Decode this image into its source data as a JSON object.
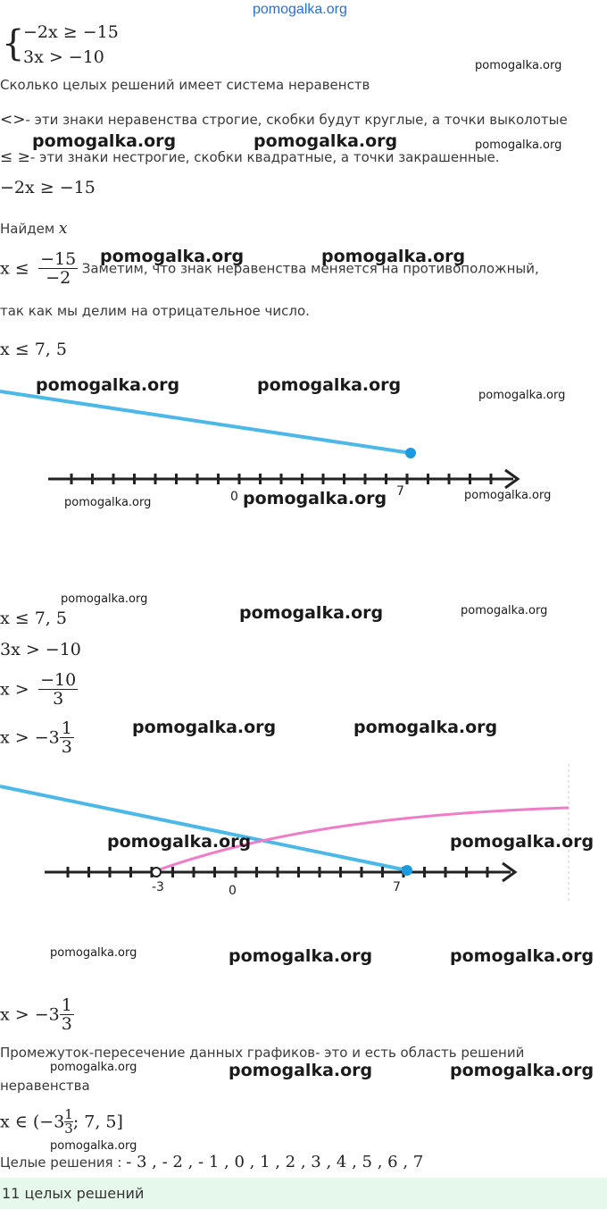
{
  "header": {
    "site": "pomogalka.org"
  },
  "system": {
    "line1": "−2x  ≥  −15",
    "line2": "3x  >  −10"
  },
  "question": "Сколько целых решений имеет система неравенств",
  "rule_strict": {
    "symbols": "<>",
    "text": "- эти знаки неравенства строгие, скобки будут круглые, а точки выколотые"
  },
  "rule_nonstrict": {
    "symbols": "≤ ≥",
    "text": "- эти знаки нестрогие, скобки квадратные, а точки закрашенные."
  },
  "ineq1": "−2x  ≥  −15",
  "find": {
    "label": "Найдем",
    "var": "x"
  },
  "step1": {
    "lhs": "x  ≤",
    "num": "−15",
    "den": "−2",
    "note": "Заметим, что знак неравенства меняется на противоположный,",
    "note2": "так как мы делим на отрицательное число."
  },
  "result1": "x  ≤  7, 5",
  "numberline1": {
    "label_zero": "0",
    "label_seven": "7",
    "line_color": "#4bb8e8",
    "point_color": "#1e9be0"
  },
  "result1_again": "x  ≤  7, 5",
  "ineq2": "3x  >  −10",
  "step2": {
    "lhs": "x  >",
    "num": "−10",
    "den": "3"
  },
  "step3": {
    "lhs": "x  >  −3",
    "num": "1",
    "den": "3"
  },
  "numberline2": {
    "label_neg3": "-3",
    "label_zero": "0",
    "label_seven": "7",
    "blue_color": "#4bb8e8",
    "pink_color": "#f07cc8"
  },
  "step4": {
    "lhs": "x  >  −3",
    "num": "1",
    "den": "3"
  },
  "conclusion": {
    "line1": "Промежуток-пересечение данных графиков- это и есть область решений",
    "line2": "неравенства"
  },
  "interval": {
    "pre": "x ∈ (−3",
    "num": "1",
    "den": "3",
    "post": ";  7, 5]"
  },
  "integers": {
    "label": "Целые решения : ",
    "values": "- 3 , - 2 , - 1 , 0 , 1 , 2 , 3 , 4 , 5 , 6 , 7"
  },
  "answer": {
    "text": "11 целых решений",
    "bg": "#e6f8ec"
  },
  "watermark": "pomogalka.org"
}
